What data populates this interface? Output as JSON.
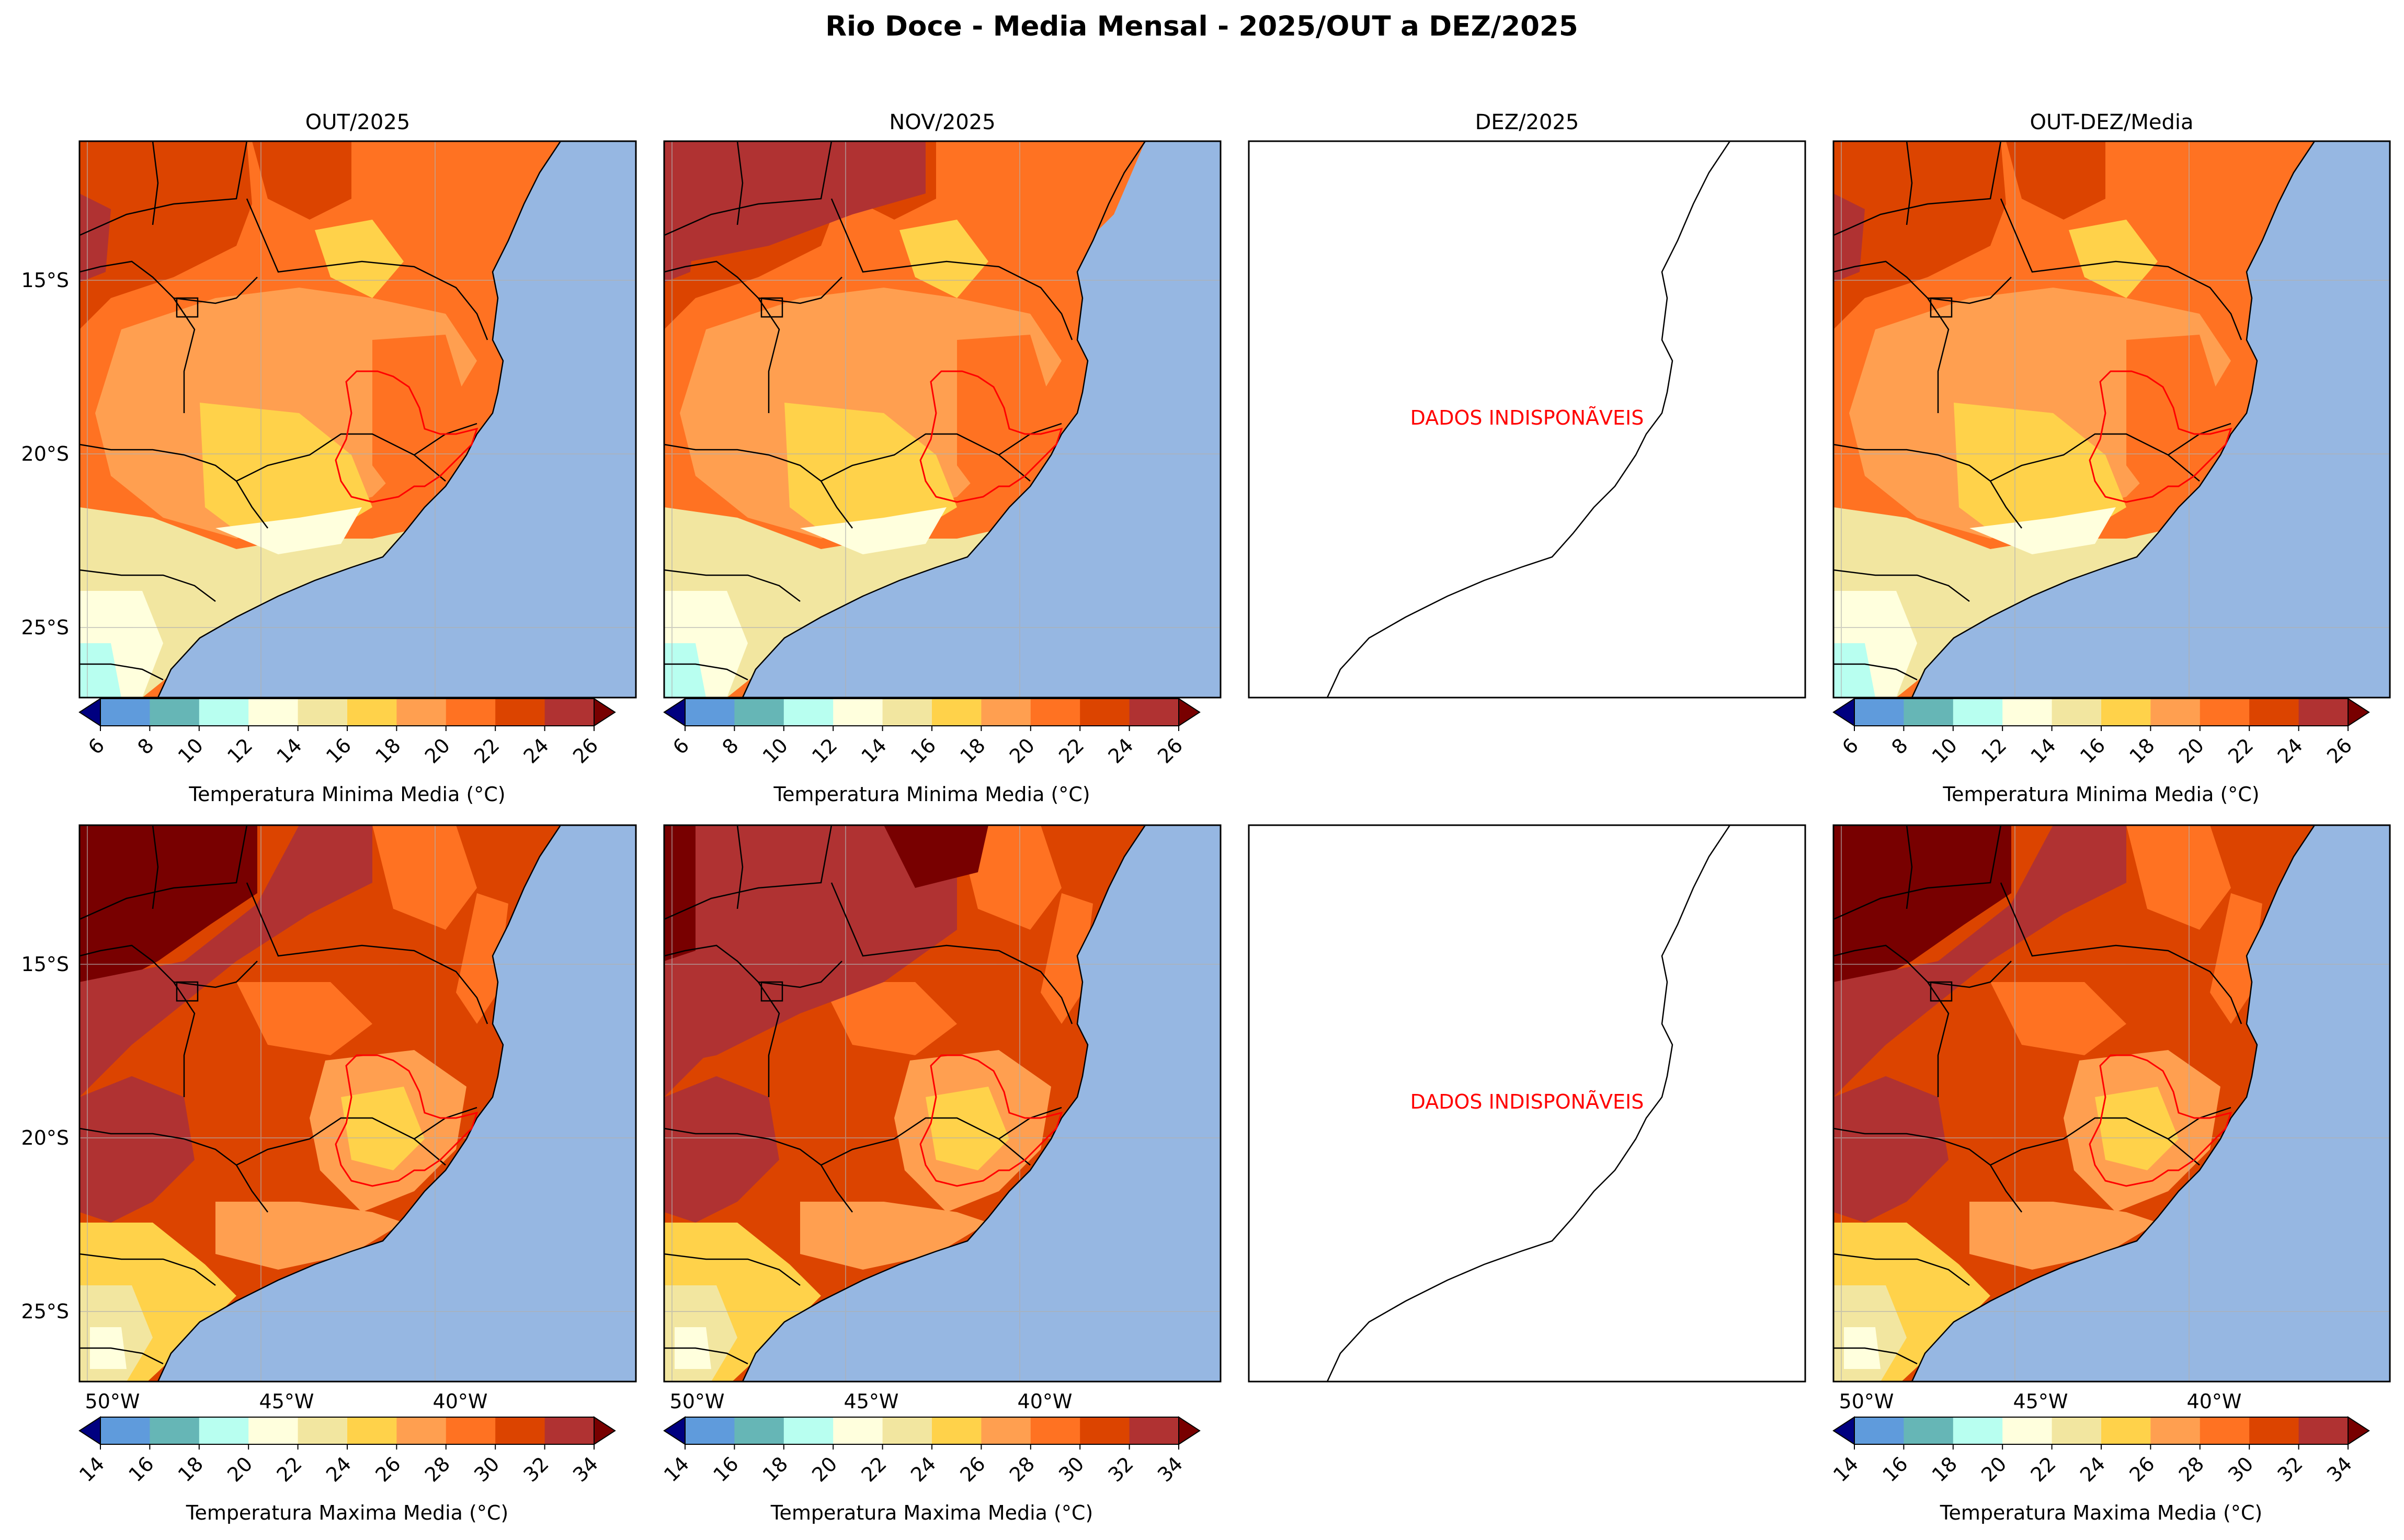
{
  "figure": {
    "title": "Rio Doce - Media Mensal - 2025/OUT a DEZ/2025"
  },
  "panels": [
    {
      "title": "OUT/2025",
      "available": true
    },
    {
      "title": "NOV/2025",
      "available": true
    },
    {
      "title": "DEZ/2025",
      "available": false
    },
    {
      "title": "OUT-DEZ/Media",
      "available": true
    }
  ],
  "unavailable_label": "DADOS INDISPONÃ\bVEIS",
  "axes": {
    "lat_ticks": [
      "15°S",
      "20°S",
      "25°S"
    ],
    "lon_ticks": [
      "50°W",
      "45°W",
      "40°W"
    ]
  },
  "colorbars": {
    "colors": [
      "#000080",
      "#5f9bdc",
      "#66b6b6",
      "#b8fff0",
      "#ffffdd",
      "#f2e6a0",
      "#ffd24a",
      "#ff9f50",
      "#ff7222",
      "#dc4400",
      "#b03232",
      "#780000"
    ],
    "min": {
      "label": "Temperatura Minima Media ($^\\circ$C)",
      "label_text": "Temperatura Minima Media (°C)",
      "ticks": [
        "6",
        "8",
        "10",
        "12",
        "14",
        "16",
        "18",
        "20",
        "22",
        "24",
        "26"
      ]
    },
    "max": {
      "label_text": "Temperatura Maxima Media (°C)",
      "ticks": [
        "14",
        "16",
        "18",
        "20",
        "22",
        "24",
        "26",
        "28",
        "30",
        "32",
        "34"
      ]
    }
  },
  "map_colors": {
    "ocean": "#96b7e2",
    "basin_outline": "#ff0000",
    "unavailable_text": "#ff0000"
  }
}
